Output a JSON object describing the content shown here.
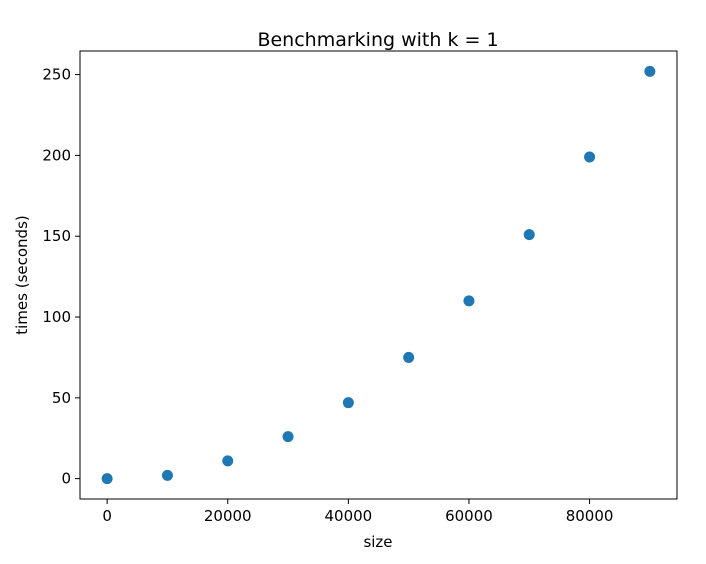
{
  "chart_data": {
    "type": "scatter",
    "title": "Benchmarking with k = 1",
    "xlabel": "size",
    "ylabel": "times (seconds)",
    "xlim": [
      -4500,
      94500
    ],
    "ylim": [
      -12.6,
      264.6
    ],
    "xticks": [
      0,
      20000,
      40000,
      60000,
      80000
    ],
    "xtick_labels": [
      "0",
      "20000",
      "40000",
      "60000",
      "80000"
    ],
    "yticks": [
      0,
      50,
      100,
      150,
      200,
      250
    ],
    "ytick_labels": [
      "0",
      "50",
      "100",
      "150",
      "200",
      "250"
    ],
    "grid": false,
    "series": [
      {
        "name": "times",
        "color": "#1f77b4",
        "x": [
          0,
          10000,
          20000,
          30000,
          40000,
          50000,
          60000,
          70000,
          80000,
          90000
        ],
        "y": [
          0,
          2,
          11,
          26,
          47,
          75,
          110,
          151,
          199,
          252
        ]
      }
    ]
  }
}
